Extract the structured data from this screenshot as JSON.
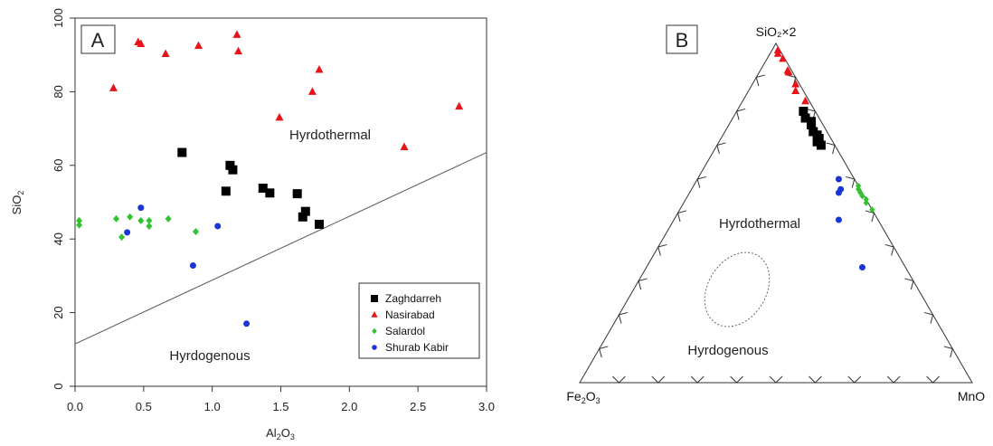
{
  "chart_data": [
    {
      "panel": "A",
      "type": "scatter",
      "xlabel": "Al2O3",
      "ylabel": "SiO2",
      "xlim": [
        0,
        3
      ],
      "ylim": [
        0,
        100
      ],
      "xticks": [
        "0.0",
        "0.5",
        "1.0",
        "1.5",
        "2.0",
        "2.5",
        "3.0"
      ],
      "yticks": [
        "0",
        "20",
        "40",
        "60",
        "80",
        "100"
      ],
      "grid": false,
      "legend_position": "bottom-right",
      "boundary_line": {
        "x": [
          0,
          3
        ],
        "y": [
          11.5,
          63.5
        ]
      },
      "region_labels": [
        "Hyrdothermal",
        "Hyrdogenous"
      ],
      "series": [
        {
          "name": "Zaghdarreh",
          "marker": "square",
          "color": "#000000",
          "x": [
            0.78,
            1.1,
            1.13,
            1.15,
            1.37,
            1.42,
            1.62,
            1.66,
            1.68,
            1.78
          ],
          "y": [
            63.5,
            53.0,
            60.0,
            58.8,
            53.8,
            52.5,
            52.3,
            46.0,
            47.5,
            44.0
          ]
        },
        {
          "name": "Nasirabad",
          "marker": "triangle",
          "color": "#e8141a",
          "x": [
            0.28,
            0.46,
            0.48,
            0.66,
            0.9,
            1.18,
            1.19,
            1.49,
            1.73,
            1.78,
            2.4,
            2.8
          ],
          "y": [
            81.0,
            93.5,
            93.0,
            90.3,
            92.5,
            95.5,
            91.0,
            73.0,
            80.0,
            86.0,
            65.0,
            76.0
          ]
        },
        {
          "name": "Salardol",
          "marker": "diamond",
          "color": "#2fc42f",
          "x": [
            0.03,
            0.03,
            0.3,
            0.34,
            0.4,
            0.48,
            0.54,
            0.54,
            0.68,
            0.88
          ],
          "y": [
            45.0,
            43.8,
            45.5,
            40.5,
            46.0,
            45.0,
            45.0,
            43.5,
            45.5,
            42.0
          ]
        },
        {
          "name": "Shurab Kabir",
          "marker": "circle",
          "color": "#1a35d6",
          "x": [
            0.38,
            0.48,
            0.86,
            1.04,
            1.25
          ],
          "y": [
            41.8,
            48.5,
            32.8,
            43.5,
            17.0
          ]
        }
      ]
    },
    {
      "panel": "B",
      "type": "scatter",
      "subtype": "ternary",
      "vertices": {
        "top": "SiO2×2",
        "left": "Fe2O3",
        "right": "MnO"
      },
      "region_labels": [
        "Hyrdothermal",
        "Hyrdogenous"
      ],
      "series": [
        {
          "name": "Zaghdarreh",
          "marker": "square",
          "color": "#000000",
          "points": [
            [
              0.8,
              0.03,
              0.17
            ],
            [
              0.78,
              0.035,
              0.185
            ],
            [
              0.76,
              0.03,
              0.21
            ],
            [
              0.74,
              0.035,
              0.225
            ],
            [
              0.73,
              0.03,
              0.24
            ],
            [
              0.71,
              0.04,
              0.25
            ],
            [
              0.7,
              0.035,
              0.265
            ],
            [
              0.72,
              0.03,
              0.25
            ],
            [
              0.77,
              0.025,
              0.205
            ]
          ]
        },
        {
          "name": "Nasirabad",
          "marker": "triangle",
          "color": "#e8141a",
          "points": [
            [
              0.98,
              0.005,
              0.015
            ],
            [
              0.97,
              0.01,
              0.02
            ],
            [
              0.955,
              0.005,
              0.04
            ],
            [
              0.92,
              0.01,
              0.07
            ],
            [
              0.915,
              0.01,
              0.075
            ],
            [
              0.88,
              0.01,
              0.11
            ],
            [
              0.86,
              0.02,
              0.12
            ],
            [
              0.83,
              0.01,
              0.16
            ]
          ]
        },
        {
          "name": "Salardol",
          "marker": "diamond",
          "color": "#2fc42f",
          "points": [
            [
              0.58,
              0.0,
              0.42
            ],
            [
              0.57,
              0.005,
              0.425
            ],
            [
              0.56,
              0.005,
              0.435
            ],
            [
              0.55,
              0.005,
              0.445
            ],
            [
              0.54,
              0.0,
              0.46
            ],
            [
              0.53,
              0.005,
              0.465
            ],
            [
              0.51,
              0.0,
              0.49
            ]
          ]
        },
        {
          "name": "Shurab Kabir",
          "marker": "circle",
          "color": "#1a35d6",
          "points": [
            [
              0.6,
              0.04,
              0.36
            ],
            [
              0.57,
              0.05,
              0.38
            ],
            [
              0.56,
              0.06,
              0.38
            ],
            [
              0.48,
              0.1,
              0.42
            ],
            [
              0.34,
              0.11,
              0.55
            ]
          ]
        }
      ]
    }
  ],
  "panelA": {
    "letter": "A",
    "region_upper": "Hyrdothermal",
    "region_lower": "Hyrdogenous",
    "xlabel_main": "Al",
    "xlabel_sub1": "2",
    "xlabel_mid": "O",
    "xlabel_sub2": "3",
    "ylabel_main": "SiO",
    "ylabel_sub": "2"
  },
  "panelB": {
    "letter": "B",
    "top_vertex": "SiO₂×2",
    "left_main": "Fe",
    "left_sub1": "2",
    "left_mid": "O",
    "left_sub2": "3",
    "right_vertex": "MnO",
    "region_upper": "Hyrdothermal",
    "region_lower": "Hyrdogenous"
  }
}
